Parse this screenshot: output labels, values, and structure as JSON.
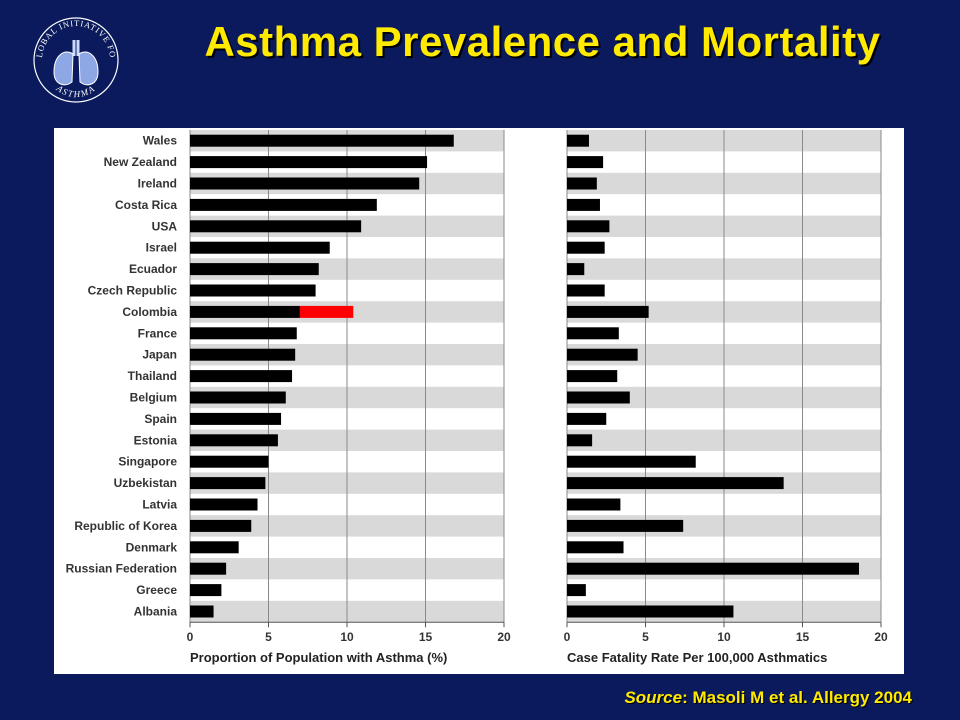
{
  "header": {
    "title": "Asthma Prevalence and Mortality",
    "logo_text_top": "GLOBAL INITIATIVE FOR",
    "logo_text_bottom": "ASTHMA"
  },
  "footer": {
    "source_key": "Source",
    "source_text": ":  Masoli M et al.  Allergy 2004"
  },
  "colors": {
    "background": "#0a1a5c",
    "title": "#ffea00",
    "bar": "#000000",
    "highlight": "#ff0000",
    "stripe": "#d9d9d9"
  },
  "chart_data": [
    {
      "type": "bar",
      "orientation": "horizontal",
      "categories": [
        "Wales",
        "New Zealand",
        "Ireland",
        "Costa Rica",
        "USA",
        "Israel",
        "Ecuador",
        "Czech Republic",
        "Colombia",
        "France",
        "Japan",
        "Thailand",
        "Belgium",
        "Spain",
        "Estonia",
        "Singapore",
        "Uzbekistan",
        "Latvia",
        "Republic of Korea",
        "Denmark",
        "Russian Federation",
        "Greece",
        "Albania"
      ],
      "values": [
        16.8,
        15.1,
        14.6,
        11.9,
        10.9,
        8.9,
        8.2,
        8.0,
        10.4,
        6.8,
        6.7,
        6.5,
        6.1,
        5.8,
        5.6,
        5.0,
        4.8,
        4.3,
        3.9,
        3.1,
        2.3,
        2.0,
        1.5
      ],
      "highlight": {
        "category": "Colombia",
        "from": 7.0,
        "to": 10.4
      },
      "xlabel": "Proportion of Population with Asthma (%)",
      "xlim": [
        0,
        20
      ],
      "xticks": [
        "0",
        "5",
        "10",
        "15",
        "20"
      ],
      "grid": true,
      "striped_rows": true
    },
    {
      "type": "bar",
      "orientation": "horizontal",
      "categories": [
        "Wales",
        "New Zealand",
        "Ireland",
        "Costa Rica",
        "USA",
        "Israel",
        "Ecuador",
        "Czech Republic",
        "Colombia",
        "France",
        "Japan",
        "Thailand",
        "Belgium",
        "Spain",
        "Estonia",
        "Singapore",
        "Uzbekistan",
        "Latvia",
        "Republic of Korea",
        "Denmark",
        "Russian Federation",
        "Greece",
        "Albania"
      ],
      "values": [
        1.4,
        2.3,
        1.9,
        2.1,
        2.7,
        2.4,
        1.1,
        2.4,
        5.2,
        3.3,
        4.5,
        3.2,
        4.0,
        2.5,
        1.6,
        8.2,
        13.8,
        3.4,
        7.4,
        3.6,
        18.6,
        1.2,
        10.6
      ],
      "xlabel": "Case Fatality Rate Per 100,000 Asthmatics",
      "xlim": [
        0,
        20
      ],
      "xticks": [
        "0",
        "5",
        "10",
        "15",
        "20"
      ],
      "grid": true,
      "striped_rows": true
    }
  ]
}
